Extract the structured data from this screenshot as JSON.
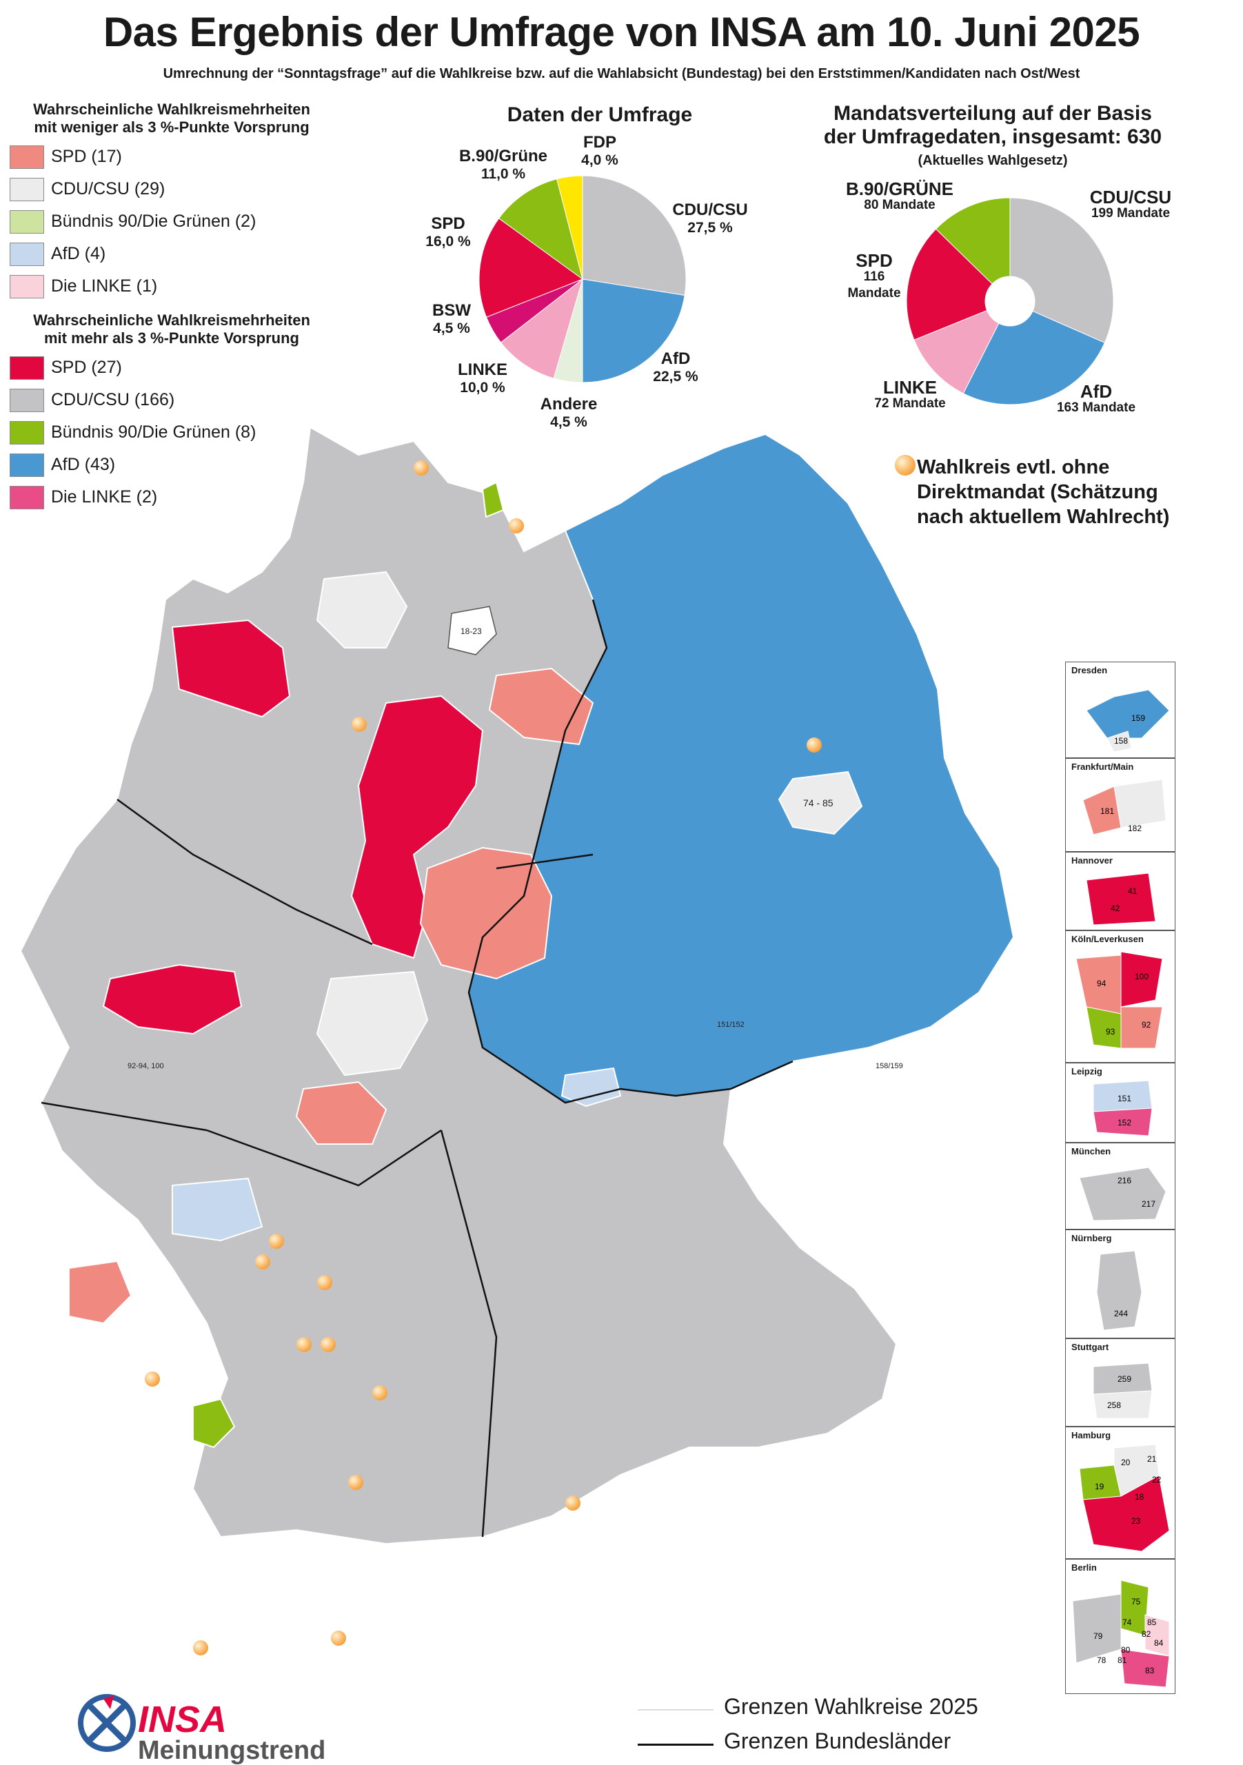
{
  "header": {
    "title": "Das Ergebnis der Umfrage von INSA am 10. Juni 2025",
    "subtitle": "Umrechnung der “Sonntagsfrage” auf die Wahlkreise bzw. auf die Wahlabsicht (Bundestag) bei den Erststimmen/Kandidaten nach Ost/West"
  },
  "legend_narrow": {
    "heading_1": "Wahrscheinliche Wahlkreismehrheiten",
    "heading_2": "mit weniger als 3 %-Punkte Vorsprung",
    "items": [
      {
        "label": "SPD (17)",
        "color": "#f08a80"
      },
      {
        "label": "CDU/CSU (29)",
        "color": "#ececec"
      },
      {
        "label": "Bündnis 90/Die Grünen (2)",
        "color": "#cfe3a0"
      },
      {
        "label": "AfD (4)",
        "color": "#c6d8ee"
      },
      {
        "label": "Die LINKE (1)",
        "color": "#f9d2dc"
      }
    ]
  },
  "legend_wide": {
    "heading_1": "Wahrscheinliche Wahlkreismehrheiten",
    "heading_2": "mit mehr als 3 %-Punkte Vorsprung",
    "items": [
      {
        "label": "SPD (27)",
        "color": "#e2073f"
      },
      {
        "label": "CDU/CSU (166)",
        "color": "#c3c3c6"
      },
      {
        "label": "Bündnis 90/Die Grünen (8)",
        "color": "#8cbd13"
      },
      {
        "label": "AfD (43)",
        "color": "#4a98d2"
      },
      {
        "label": "Die LINKE (2)",
        "color": "#e84d87"
      }
    ]
  },
  "poll": {
    "title": "Daten der Umfrage",
    "labels": {
      "fdp_name": "FDP",
      "fdp_val": "4,0 %",
      "gruene_name": "B.90/Grüne",
      "gruene_val": "11,0 %",
      "spd_name": "SPD",
      "spd_val": "16,0 %",
      "cdu_name": "CDU/CSU",
      "cdu_val": "27,5 %",
      "bsw_name": "BSW",
      "bsw_val": "4,5 %",
      "linke_name": "LINKE",
      "linke_val": "10,0 %",
      "afd_name": "AfD",
      "afd_val": "22,5 %",
      "andere_name": "Andere",
      "andere_val": "4,5 %"
    }
  },
  "chart_data": [
    {
      "type": "pie",
      "title": "Daten der Umfrage",
      "categories": [
        "CDU/CSU",
        "AfD",
        "Andere",
        "LINKE",
        "BSW",
        "SPD",
        "B.90/Grüne",
        "FDP"
      ],
      "values": [
        27.5,
        22.5,
        4.5,
        10.0,
        4.5,
        16.0,
        11.0,
        4.0
      ],
      "colors": [
        "#c3c3c6",
        "#4a98d2",
        "#e4efdc",
        "#f3a4c0",
        "#d50f72",
        "#e2073f",
        "#8cbd13",
        "#ffe600"
      ]
    },
    {
      "type": "pie",
      "title": "Mandatsverteilung auf der Basis der Umfragedaten, insgesamt: 630",
      "categories": [
        "CDU/CSU",
        "AfD",
        "LINKE",
        "SPD",
        "B.90/GRÜNE"
      ],
      "values": [
        199,
        163,
        72,
        116,
        80
      ],
      "colors": [
        "#c3c3c6",
        "#4a98d2",
        "#f3a4c0",
        "#e2073f",
        "#8cbd13"
      ]
    }
  ],
  "seats": {
    "title_1": "Mandatsverteilung auf der Basis",
    "title_2": "der Umfragedaten, insgesamt: 630",
    "title_3": "(Aktuelles Wahlgesetz)",
    "labels": {
      "gruene_name": "B.90/GRÜNE",
      "gruene_val": "80 Mandate",
      "cdu_name": "CDU/CSU",
      "cdu_val": "199 Mandate",
      "spd_name": "SPD",
      "spd_val_1": "116",
      "spd_val_2": "Mandate",
      "linke_name": "LINKE",
      "linke_val": "72 Mandate",
      "afd_name": "AfD",
      "afd_val": "163 Mandate"
    }
  },
  "map": {
    "note_1": "Wahlkreis evtl. ohne",
    "note_2": "Direktmandat (Schätzung",
    "note_3": "nach aktuellem Wahlrecht)",
    "region_labels": {
      "hamburg_codes": "18-23",
      "berlin_codes": "74 - 85",
      "koeln_codes": "92-94, 100",
      "dresden_codes": "158/159",
      "leipzig_codes": "151/152"
    }
  },
  "insets": [
    {
      "caption": "Dresden",
      "labels": [
        "159",
        "158"
      ]
    },
    {
      "caption": "Frankfurt/Main",
      "labels": [
        "181",
        "182"
      ]
    },
    {
      "caption": "Hannover",
      "labels": [
        "41",
        "42"
      ]
    },
    {
      "caption": "Köln/Leverkusen",
      "labels": [
        "100",
        "94",
        "92",
        "93"
      ]
    },
    {
      "caption": "Leipzig",
      "labels": [
        "151",
        "152"
      ]
    },
    {
      "caption": "München",
      "labels": [
        "216",
        "217"
      ]
    },
    {
      "caption": "Nürnberg",
      "labels": [
        "244"
      ]
    },
    {
      "caption": "Stuttgart",
      "labels": [
        "259",
        "258"
      ]
    },
    {
      "caption": "Hamburg",
      "labels": [
        "20",
        "21",
        "19",
        "22",
        "18",
        "23"
      ]
    },
    {
      "caption": "Berlin",
      "labels": [
        "75",
        "74",
        "85",
        "84",
        "79",
        "82",
        "80",
        "78",
        "81",
        "83"
      ]
    }
  ],
  "bottom_legend": {
    "wk_label": "Grenzen Wahlkreise 2025",
    "bl_label": "Grenzen Bundesländer"
  },
  "logo": {
    "name": "INSA",
    "tagline": "Meinungstrend"
  }
}
